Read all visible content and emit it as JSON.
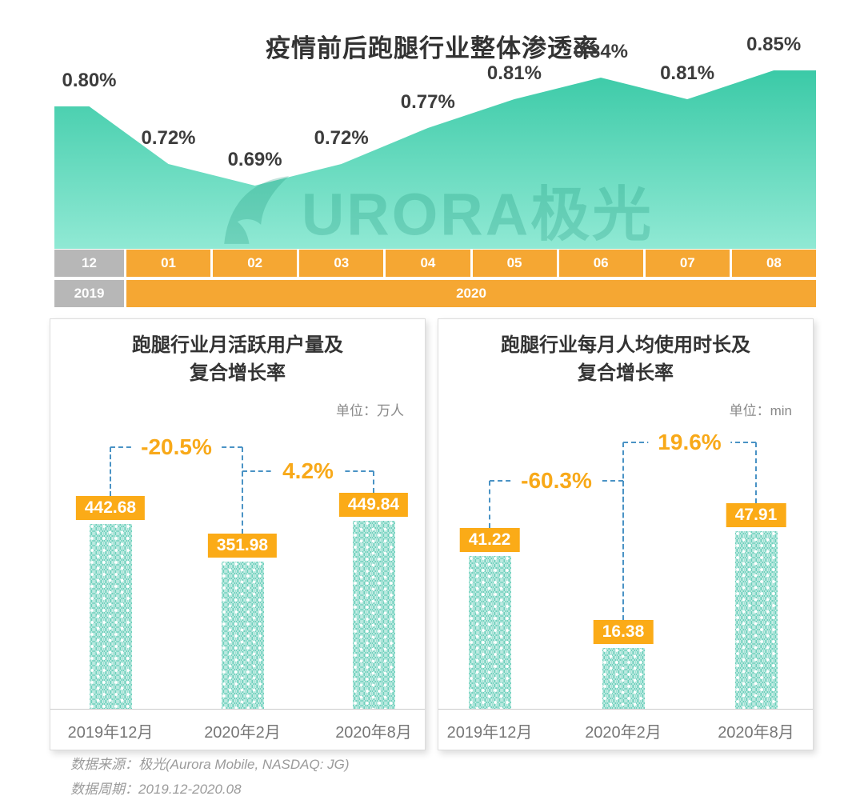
{
  "title": "疫情前后跑腿行业整体渗透率",
  "watermark": {
    "text": "URORA极光"
  },
  "chart_data": [
    {
      "type": "area",
      "title": "疫情前后跑腿行业整体渗透率",
      "unit": "%",
      "x": [
        "2019-12",
        "2020-01",
        "2020-02",
        "2020-03",
        "2020-04",
        "2020-05",
        "2020-06",
        "2020-07",
        "2020-08"
      ],
      "values": [
        0.8,
        0.72,
        0.69,
        0.72,
        0.77,
        0.81,
        0.84,
        0.81,
        0.85
      ],
      "labels": [
        "0.80%",
        "0.72%",
        "0.69%",
        "0.72%",
        "0.77%",
        "0.81%",
        "0.84%",
        "0.81%",
        "0.85%"
      ],
      "ylim": [
        0.6,
        0.9
      ],
      "x_axis_rows": {
        "months": [
          "12",
          "01",
          "02",
          "03",
          "04",
          "05",
          "06",
          "07",
          "08"
        ],
        "years": [
          "2019",
          "2020"
        ]
      }
    },
    {
      "type": "bar",
      "title": "跑腿行业月活跃用户量及\n复合增长率",
      "unit_label": "单位：万人",
      "categories": [
        "2019年12月",
        "2020年2月",
        "2020年8月"
      ],
      "values": [
        442.68,
        351.98,
        449.84
      ],
      "value_labels": [
        "442.68",
        "351.98",
        "449.84"
      ],
      "growth": [
        {
          "label": "-20.5%",
          "from": 0,
          "to": 1
        },
        {
          "label": "4.2%",
          "from": 1,
          "to": 2
        }
      ]
    },
    {
      "type": "bar",
      "title": "跑腿行业每月人均使用时长及\n复合增长率",
      "unit_label": "单位：min",
      "categories": [
        "2019年12月",
        "2020年2月",
        "2020年8月"
      ],
      "values": [
        41.22,
        16.38,
        47.91
      ],
      "value_labels": [
        "41.22",
        "16.38",
        "47.91"
      ],
      "growth": [
        {
          "label": "-60.3%",
          "from": 0,
          "to": 1
        },
        {
          "label": "19.6%",
          "from": 1,
          "to": 2
        }
      ]
    }
  ],
  "footer": {
    "source": "数据来源：极光(Aurora Mobile, NASDAQ: JG)",
    "period": "数据周期：2019.12-2020.08"
  },
  "colors": {
    "teal_top": "#3bcaa7",
    "teal_bottom": "#90e9d4",
    "band_orange": "#f5a733",
    "band_gray": "#b7b7b7",
    "value_box_orange": "#fbab17",
    "growth_text_orange": "#f8a919",
    "dash_blue": "#4a93c5"
  }
}
